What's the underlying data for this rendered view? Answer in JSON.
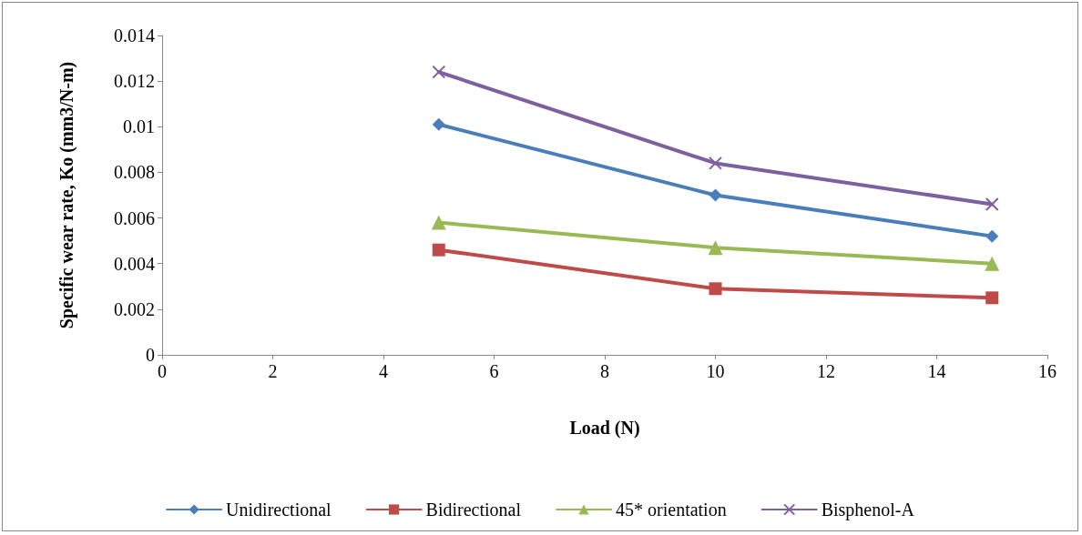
{
  "chart_data": {
    "type": "line",
    "xlabel": "Load (N)",
    "ylabel": "Specific wear rate, Ko (mm3/N-m)",
    "x": [
      5,
      10,
      15
    ],
    "series": [
      {
        "name": "Unidirectional",
        "color": "#4a7ebb",
        "marker": "diamond",
        "values": [
          0.0101,
          0.007,
          0.0052
        ]
      },
      {
        "name": "Bidirectional",
        "color": "#be4b48",
        "marker": "square",
        "values": [
          0.0046,
          0.0029,
          0.0025
        ]
      },
      {
        "name": "45* orientation",
        "color": "#98b954",
        "marker": "triangle",
        "values": [
          0.0058,
          0.0047,
          0.004
        ]
      },
      {
        "name": "Bisphenol-A",
        "color": "#7d60a0",
        "marker": "cross",
        "values": [
          0.0124,
          0.0084,
          0.0066
        ]
      }
    ],
    "xlim": [
      0,
      16
    ],
    "xticks": [
      0,
      2,
      4,
      6,
      8,
      10,
      12,
      14,
      16
    ],
    "ylim": [
      0,
      0.014
    ],
    "yticks": [
      0,
      0.002,
      0.004,
      0.006,
      0.008,
      0.01,
      0.012,
      0.014
    ],
    "grid": false,
    "legend": "bottom",
    "line_style": "solid"
  }
}
